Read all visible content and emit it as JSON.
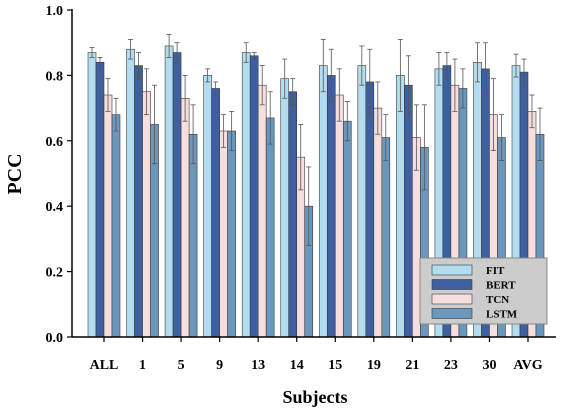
{
  "chart_data": {
    "type": "bar",
    "title": "",
    "xlabel": "Subjects",
    "ylabel": "PCC",
    "ylim": [
      0.0,
      1.0
    ],
    "yticks": [
      0.0,
      0.2,
      0.4,
      0.6,
      0.8,
      1.0
    ],
    "ytick_labels": [
      "0.0",
      "0.2",
      "0.4",
      "0.6",
      "0.8",
      "1.0"
    ],
    "grid": false,
    "legend_position": "bottom-right",
    "error_bars": true,
    "categories": [
      "ALL",
      "1",
      "5",
      "9",
      "13",
      "14",
      "15",
      "19",
      "21",
      "23",
      "30",
      "AVG"
    ],
    "series": [
      {
        "name": "FIT",
        "color": "#b3dcef",
        "values": [
          0.87,
          0.88,
          0.89,
          0.8,
          0.87,
          0.79,
          0.83,
          0.83,
          0.8,
          0.82,
          0.84,
          0.83
        ],
        "errors": [
          0.015,
          0.03,
          0.035,
          0.02,
          0.03,
          0.06,
          0.08,
          0.06,
          0.11,
          0.05,
          0.06,
          0.035
        ]
      },
      {
        "name": "BERT",
        "color": "#3f60a0",
        "values": [
          0.84,
          0.83,
          0.87,
          0.76,
          0.86,
          0.75,
          0.8,
          0.78,
          0.77,
          0.83,
          0.82,
          0.81
        ],
        "errors": [
          0.015,
          0.04,
          0.03,
          0.02,
          0.01,
          0.04,
          0.08,
          0.1,
          0.09,
          0.04,
          0.08,
          0.04
        ]
      },
      {
        "name": "TCN",
        "color": "#f7dede",
        "values": [
          0.74,
          0.75,
          0.73,
          0.63,
          0.77,
          0.55,
          0.74,
          0.7,
          0.61,
          0.77,
          0.68,
          0.69
        ],
        "errors": [
          0.05,
          0.07,
          0.07,
          0.05,
          0.06,
          0.1,
          0.08,
          0.08,
          0.1,
          0.08,
          0.11,
          0.05
        ]
      },
      {
        "name": "LSTM",
        "color": "#6b97bd",
        "values": [
          0.68,
          0.65,
          0.62,
          0.63,
          0.67,
          0.4,
          0.66,
          0.61,
          0.58,
          0.76,
          0.61,
          0.62
        ],
        "errors": [
          0.05,
          0.12,
          0.09,
          0.06,
          0.08,
          0.12,
          0.06,
          0.07,
          0.13,
          0.06,
          0.07,
          0.08
        ]
      }
    ]
  }
}
